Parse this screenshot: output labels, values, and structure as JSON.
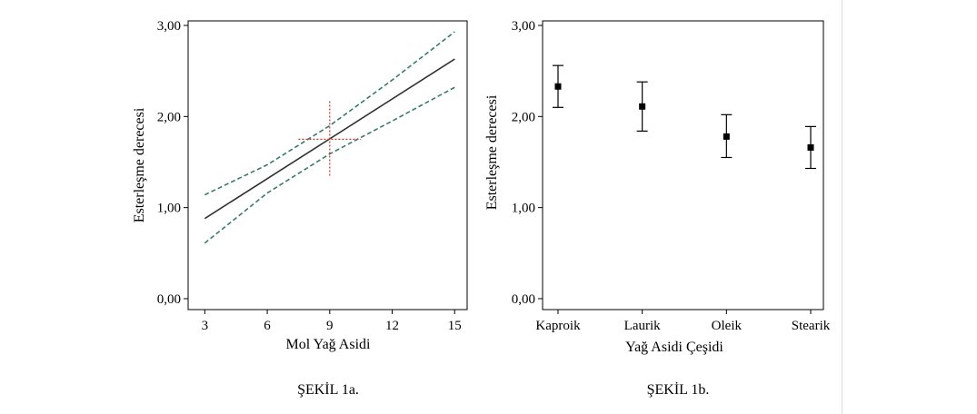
{
  "chart_data": [
    {
      "type": "line",
      "xlabel": "Mol Yağ Asidi",
      "ylabel": "Esterleşme derecesi",
      "caption": "ŞEKİL 1a.",
      "x_ticks": [
        "3",
        "6",
        "9",
        "12",
        "15"
      ],
      "y_ticks": [
        "0,00",
        "1,00",
        "2,00",
        "3,00"
      ],
      "xlim": [
        2.2,
        15.6
      ],
      "ylim": [
        -0.12,
        3.05
      ],
      "series": [
        {
          "role": "fit",
          "x": [
            3,
            15
          ],
          "y": [
            0.88,
            2.63
          ],
          "color": "#333333"
        },
        {
          "role": "upper-band",
          "x": [
            3,
            6,
            9,
            12,
            15
          ],
          "y": [
            1.14,
            1.47,
            1.9,
            2.4,
            2.93
          ],
          "color": "#3a7a6a"
        },
        {
          "role": "lower-band",
          "x": [
            3,
            6,
            9,
            12,
            15
          ],
          "y": [
            0.61,
            1.16,
            1.59,
            1.95,
            2.32
          ],
          "color": "#3a7a6a"
        }
      ],
      "crosshair": {
        "x": 9,
        "y": 1.75,
        "x_extent": [
          7.5,
          10.5
        ],
        "y_extent": [
          1.35,
          2.17
        ],
        "color": "#c0392b"
      }
    },
    {
      "type": "scatter",
      "xlabel": "Yağ Asidi Çeşidi",
      "ylabel": "Esterleşme derecesi",
      "caption": "ŞEKİL 1b.",
      "categories": [
        "Kaproik",
        "Laurik",
        "Oleik",
        "Stearik"
      ],
      "values": [
        2.33,
        2.11,
        1.78,
        1.66
      ],
      "errors_low": [
        2.1,
        1.84,
        1.55,
        1.43
      ],
      "errors_high": [
        2.56,
        2.38,
        2.02,
        1.89
      ],
      "y_ticks": [
        "0,00",
        "1,00",
        "2,00",
        "3,00"
      ],
      "ylim": [
        -0.12,
        3.05
      ]
    }
  ]
}
